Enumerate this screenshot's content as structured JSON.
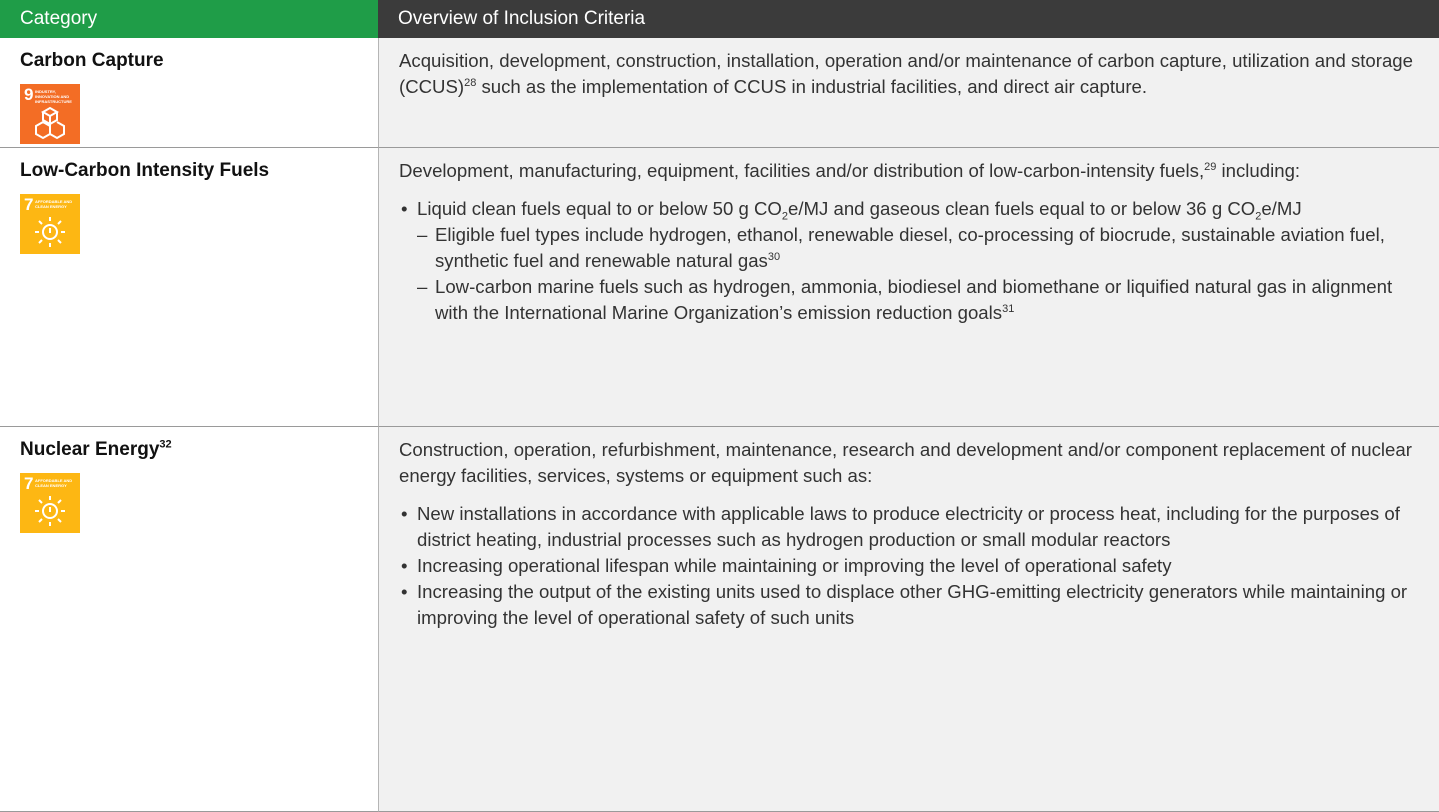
{
  "header": {
    "category": "Category",
    "overview": "Overview of Inclusion Criteria"
  },
  "rows": [
    {
      "category": [
        "Carbon Capture"
      ],
      "icon": {
        "number": "9",
        "label": "INDUSTRY, INNOVATION AND INFRASTRUCTURE"
      },
      "content": [
        {
          "paragraph": [
            "Acquisition, development, construction, installation, operation and/or maintenance of carbon capture, utilization and storage (CCUS)",
            {
              "sup": "28"
            },
            " such as the implementation of CCUS in industrial facilities, and direct air capture."
          ]
        }
      ]
    },
    {
      "category": [
        "Low-Carbon Intensity Fuels"
      ],
      "icon": {
        "number": "7",
        "label": "AFFORDABLE AND CLEAN ENERGY"
      },
      "content": [
        {
          "paragraph": [
            "Development, manufacturing, equipment, facilities and/or distribution of low-carbon-intensity fuels,",
            {
              "sup": "29"
            },
            " including:"
          ]
        },
        {
          "bullet": [
            "Liquid clean fuels equal to or below 50 g CO",
            {
              "sub": "2"
            },
            "e/MJ and gaseous clean fuels equal to or below 36 g CO",
            {
              "sub": "2"
            },
            "e/MJ"
          ]
        },
        {
          "dash": [
            "Eligible fuel types include hydrogen, ethanol, renewable diesel, co-processing of biocrude, sustainable aviation fuel, synthetic fuel and renewable natural gas",
            {
              "sup": "30"
            }
          ]
        },
        {
          "dash": [
            "Low-carbon marine fuels such as hydrogen, ammonia, biodiesel and biomethane or liquified natural gas in alignment with the International Marine Organization’s emission reduction goals",
            {
              "sup": "31"
            }
          ]
        }
      ]
    },
    {
      "category": [
        "Nuclear Energy",
        {
          "sup": "32"
        }
      ],
      "icon": {
        "number": "7",
        "label": "AFFORDABLE AND CLEAN ENERGY"
      },
      "content": [
        {
          "paragraph": [
            "Construction, operation, refurbishment, maintenance, research and development and/or component replacement of nuclear energy facilities, services, systems or equipment such as:"
          ]
        },
        {
          "bullet": [
            "New installations in accordance with applicable laws to produce electricity or process heat, including for the purposes of district heating, industrial processes such as hydrogen production or small modular reactors"
          ]
        },
        {
          "bullet": [
            "Increasing operational lifespan while maintaining or improving the level of operational safety"
          ]
        },
        {
          "bullet": [
            "Increasing the output of the existing units used to displace other GHG-emitting electricity generators while maintaining or improving the level of operational safety of such units"
          ]
        }
      ]
    }
  ]
}
